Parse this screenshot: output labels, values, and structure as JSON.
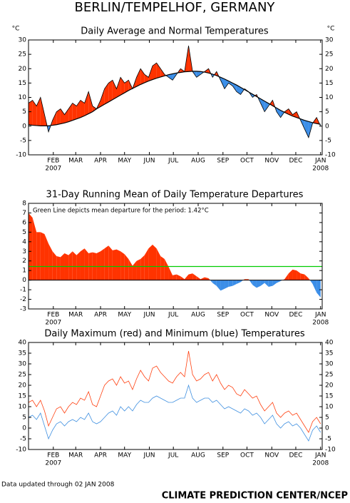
{
  "header": {
    "title": "BERLIN/TEMPELHOF, GERMANY"
  },
  "footer": {
    "note": "Data updated through 02 JAN 2008",
    "credit": "CLIMATE PREDICTION CENTER/NCEP"
  },
  "chart_data": [
    {
      "type": "band",
      "title": "Daily Average and Normal Temperatures",
      "y_unit_label": "°C",
      "right_axis": true,
      "above_color": "#ff3300",
      "below_color": "#3b8ee8",
      "x": [
        0,
        5,
        10,
        15,
        20,
        25,
        30,
        35,
        40,
        45,
        50,
        55,
        60,
        65,
        70,
        75,
        80,
        85,
        90,
        95,
        100,
        105,
        110,
        115,
        120,
        125,
        130,
        135,
        140,
        145,
        150,
        155,
        160,
        165,
        170,
        175,
        180,
        185,
        190,
        195,
        200,
        205,
        210,
        215,
        220,
        225,
        230,
        235,
        240,
        245,
        250,
        255,
        260,
        265,
        270,
        275,
        280,
        285,
        290,
        295,
        300,
        305,
        310,
        315,
        320,
        325,
        330,
        335,
        340,
        345,
        350,
        355,
        360,
        365
      ],
      "series": [
        {
          "color": "#000000",
          "values": [
            8,
            9,
            7,
            10,
            4,
            -2,
            2,
            5,
            6,
            4,
            6,
            8,
            7,
            9,
            8,
            12,
            7,
            6,
            9,
            13,
            15,
            16,
            13,
            17,
            15,
            16,
            13,
            17,
            20,
            18,
            17,
            21,
            22,
            20,
            18,
            17,
            16,
            18,
            20,
            19,
            28,
            19,
            17,
            18,
            19,
            20,
            17,
            19,
            16,
            13,
            15,
            14,
            12,
            11,
            13,
            12,
            10,
            11,
            8,
            5,
            7,
            9,
            5,
            3,
            5,
            6,
            4,
            5,
            2,
            -1,
            -4,
            1,
            3,
            0
          ]
        },
        {
          "color": "#000000",
          "values": [
            0.5,
            0.3,
            0.2,
            0.1,
            0.1,
            0.1,
            0.3,
            0.5,
            0.8,
            1.1,
            1.5,
            2,
            2.5,
            3,
            3.6,
            4.3,
            5,
            6,
            6.8,
            7.6,
            8.4,
            9.2,
            10,
            10.8,
            11.6,
            12.4,
            13.1,
            13.8,
            14.5,
            15.1,
            15.7,
            16.2,
            16.7,
            17.1,
            17.5,
            17.9,
            18.2,
            18.5,
            18.7,
            18.9,
            19,
            19.1,
            19.1,
            19,
            18.8,
            18.5,
            18.1,
            17.6,
            17,
            16.4,
            15.7,
            15,
            14.3,
            13.5,
            12.7,
            11.9,
            11.1,
            10.3,
            9.5,
            8.7,
            7.9,
            7.1,
            6.3,
            5.5,
            4.8,
            4.1,
            3.5,
            3,
            2.5,
            2,
            1.6,
            1.2,
            0.9,
            0.6
          ]
        }
      ],
      "xlim": [
        0,
        367
      ],
      "ylim": [
        -10,
        30
      ],
      "yticks": [
        -10,
        -5,
        0,
        5,
        10,
        15,
        20,
        25,
        30
      ],
      "xticks": [
        {
          "value": 31,
          "label": "FEB"
        },
        {
          "value": 59,
          "label": "MAR"
        },
        {
          "value": 90,
          "label": "APR"
        },
        {
          "value": 120,
          "label": "MAY"
        },
        {
          "value": 151,
          "label": "JUN"
        },
        {
          "value": 181,
          "label": "JUL"
        },
        {
          "value": 212,
          "label": "AUG"
        },
        {
          "value": 243,
          "label": "SEP"
        },
        {
          "value": 273,
          "label": "OCT"
        },
        {
          "value": 304,
          "label": "NOV"
        },
        {
          "value": 334,
          "label": "DEC"
        },
        {
          "value": 365,
          "label": "JAN"
        }
      ],
      "xtick_sublabels": [
        {
          "value": 31,
          "label": "2007"
        },
        {
          "value": 365,
          "label": "2008"
        }
      ]
    },
    {
      "type": "area",
      "title": "31-Day Running Mean of Daily Temperature Departures",
      "annotation": "Green Line depicts mean departure for the period: 1.42°C",
      "above_color": "#ff3300",
      "below_color": "#3b8ee8",
      "mean_line": {
        "value": 1.42,
        "color": "#00cc00"
      },
      "x": [
        0,
        5,
        10,
        15,
        20,
        25,
        30,
        35,
        40,
        45,
        50,
        55,
        60,
        65,
        70,
        75,
        80,
        85,
        90,
        95,
        100,
        105,
        110,
        115,
        120,
        125,
        130,
        135,
        140,
        145,
        150,
        155,
        160,
        165,
        170,
        175,
        180,
        185,
        190,
        195,
        200,
        205,
        210,
        215,
        220,
        225,
        230,
        235,
        240,
        245,
        250,
        255,
        260,
        265,
        270,
        275,
        280,
        285,
        290,
        295,
        300,
        305,
        310,
        315,
        320,
        325,
        330,
        335,
        340,
        345,
        350,
        355,
        360,
        365
      ],
      "values": [
        7,
        6.5,
        5,
        5,
        4.8,
        3.8,
        3,
        2.5,
        2.4,
        2.8,
        2.6,
        3,
        2.6,
        3,
        3.3,
        2.8,
        2.9,
        2.8,
        3,
        3.3,
        3.6,
        3.1,
        3.2,
        3,
        2.7,
        2.2,
        1.5,
        2,
        2.2,
        2.6,
        3.3,
        3.7,
        3.3,
        2.5,
        2.2,
        1.4,
        0.5,
        0.6,
        0.4,
        0.1,
        0.6,
        0.7,
        0.4,
        0.1,
        0.3,
        0.2,
        -0.3,
        -0.6,
        -1.1,
        -0.9,
        -0.7,
        -0.6,
        -0.4,
        -0.2,
        0.1,
        0.1,
        -0.5,
        -0.8,
        -0.6,
        -0.3,
        -0.7,
        -0.6,
        -0.3,
        -0.1,
        0.1,
        0.7,
        1.1,
        1,
        0.7,
        0.6,
        0.2,
        -0.4,
        -1.3,
        -1.8
      ],
      "xlim": [
        0,
        367
      ],
      "ylim": [
        -3,
        8
      ],
      "yticks": [
        -3,
        -2,
        -1,
        0,
        1,
        2,
        3,
        4,
        5,
        6,
        7,
        8
      ],
      "xticks": [
        {
          "value": 31,
          "label": "FEB"
        },
        {
          "value": 59,
          "label": "MAR"
        },
        {
          "value": 90,
          "label": "APR"
        },
        {
          "value": 120,
          "label": "MAY"
        },
        {
          "value": 151,
          "label": "JUN"
        },
        {
          "value": 181,
          "label": "JUL"
        },
        {
          "value": 212,
          "label": "AUG"
        },
        {
          "value": 243,
          "label": "SEP"
        },
        {
          "value": 273,
          "label": "OCT"
        },
        {
          "value": 304,
          "label": "NOV"
        },
        {
          "value": 334,
          "label": "DEC"
        },
        {
          "value": 365,
          "label": "JAN"
        }
      ],
      "xtick_sublabels": [
        {
          "value": 31,
          "label": "2007"
        },
        {
          "value": 365,
          "label": "2008"
        }
      ]
    },
    {
      "type": "line",
      "title": "Daily Maximum (red) and Minimum (blue) Temperatures",
      "right_axis": true,
      "x": [
        0,
        5,
        10,
        15,
        20,
        25,
        30,
        35,
        40,
        45,
        50,
        55,
        60,
        65,
        70,
        75,
        80,
        85,
        90,
        95,
        100,
        105,
        110,
        115,
        120,
        125,
        130,
        135,
        140,
        145,
        150,
        155,
        160,
        165,
        170,
        175,
        180,
        185,
        190,
        195,
        200,
        205,
        210,
        215,
        220,
        225,
        230,
        235,
        240,
        245,
        250,
        255,
        260,
        265,
        270,
        275,
        280,
        285,
        290,
        295,
        300,
        305,
        310,
        315,
        320,
        325,
        330,
        335,
        340,
        345,
        350,
        355,
        360,
        365
      ],
      "series": [
        {
          "color": "#ff4010",
          "values": [
            12,
            13,
            10,
            13,
            8,
            1,
            5,
            9,
            10,
            7,
            10,
            12,
            11,
            14,
            13,
            17,
            11,
            10,
            15,
            20,
            22,
            23,
            20,
            24,
            21,
            22,
            18,
            23,
            27,
            24,
            22,
            28,
            29,
            26,
            24,
            22,
            21,
            24,
            26,
            24,
            36,
            25,
            22,
            23,
            25,
            26,
            22,
            25,
            21,
            18,
            20,
            19,
            16,
            15,
            18,
            16,
            14,
            15,
            11,
            8,
            10,
            12,
            7,
            5,
            7,
            8,
            6,
            7,
            4,
            1,
            -2,
            3,
            5,
            2
          ]
        },
        {
          "color": "#4090e0",
          "values": [
            5,
            6,
            4,
            7,
            1,
            -5,
            -1,
            2,
            3,
            1,
            3,
            4,
            3,
            5,
            4,
            7,
            3,
            2,
            3,
            5,
            7,
            8,
            6,
            10,
            8,
            10,
            8,
            11,
            13,
            12,
            12,
            14,
            15,
            14,
            13,
            12,
            12,
            13,
            14,
            14,
            20,
            14,
            12,
            13,
            14,
            14,
            12,
            13,
            11,
            9,
            10,
            9,
            8,
            7,
            9,
            8,
            6,
            7,
            5,
            2,
            4,
            6,
            2,
            0,
            2,
            3,
            1,
            2,
            0,
            -3,
            -6,
            -1,
            1,
            -2
          ]
        }
      ],
      "xlim": [
        0,
        367
      ],
      "ylim": [
        -10,
        40
      ],
      "yticks": [
        -10,
        -5,
        0,
        5,
        10,
        15,
        20,
        25,
        30,
        35,
        40
      ],
      "xticks": [
        {
          "value": 31,
          "label": "FEB"
        },
        {
          "value": 59,
          "label": "MAR"
        },
        {
          "value": 90,
          "label": "APR"
        },
        {
          "value": 120,
          "label": "MAY"
        },
        {
          "value": 151,
          "label": "JUN"
        },
        {
          "value": 181,
          "label": "JUL"
        },
        {
          "value": 212,
          "label": "AUG"
        },
        {
          "value": 243,
          "label": "SEP"
        },
        {
          "value": 273,
          "label": "OCT"
        },
        {
          "value": 304,
          "label": "NOV"
        },
        {
          "value": 334,
          "label": "DEC"
        },
        {
          "value": 365,
          "label": "JAN"
        }
      ],
      "xtick_sublabels": [
        {
          "value": 31,
          "label": "2007"
        },
        {
          "value": 365,
          "label": "2008"
        }
      ]
    }
  ]
}
